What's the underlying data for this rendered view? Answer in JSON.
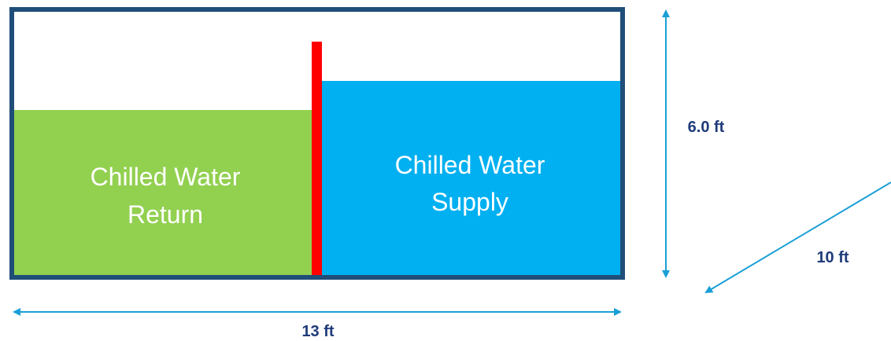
{
  "tank": {
    "return_label": [
      "Chilled Water",
      "Return"
    ],
    "supply_label": [
      "Chilled Water",
      "Supply"
    ]
  },
  "dimensions": {
    "height": "6.0 ft",
    "width": "13 ft",
    "depth": "10 ft"
  }
}
